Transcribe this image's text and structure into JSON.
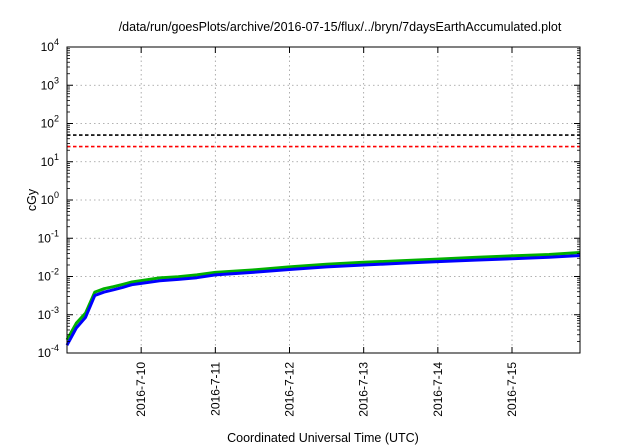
{
  "chart_data": {
    "type": "line",
    "title": "/data/run/goesPlots/archive/2016-07-15/flux/../bryn/7daysEarthAccumulated.plot",
    "xlabel": "Coordinated Universal Time (UTC)",
    "ylabel": "cGy",
    "yscale": "log",
    "ylim": [
      0.0001,
      10000
    ],
    "xlim": [
      "2016-07-09T00:00",
      "2016-07-15T22:00"
    ],
    "grid": true,
    "x_ticks": [
      {
        "date": "2016-07-10",
        "label": "2016-7-10"
      },
      {
        "date": "2016-07-11",
        "label": "2016-7-11"
      },
      {
        "date": "2016-07-12",
        "label": "2016-7-12"
      },
      {
        "date": "2016-07-13",
        "label": "2016-7-13"
      },
      {
        "date": "2016-07-14",
        "label": "2016-7-14"
      },
      {
        "date": "2016-07-15",
        "label": "2016-7-15"
      }
    ],
    "y_ticks": [
      {
        "value": 0.0001,
        "base": "10",
        "exp": "-4"
      },
      {
        "value": 0.001,
        "base": "10",
        "exp": "-3"
      },
      {
        "value": 0.01,
        "base": "10",
        "exp": "-2"
      },
      {
        "value": 0.1,
        "base": "10",
        "exp": "-1"
      },
      {
        "value": 1,
        "base": "10",
        "exp": "0"
      },
      {
        "value": 10,
        "base": "10",
        "exp": "1"
      },
      {
        "value": 100,
        "base": "10",
        "exp": "2"
      },
      {
        "value": 1000,
        "base": "10",
        "exp": "3"
      },
      {
        "value": 10000,
        "base": "10",
        "exp": "4"
      }
    ],
    "thresholds": [
      {
        "value": 50,
        "color": "#000000",
        "dash": "dashed"
      },
      {
        "value": 25,
        "color": "#ff0000",
        "dash": "dashed"
      }
    ],
    "series": [
      {
        "color": "#00b000",
        "x": [
          "2016-07-09T00:00",
          "2016-07-09T03:00",
          "2016-07-09T06:00",
          "2016-07-09T09:00",
          "2016-07-09T12:00",
          "2016-07-09T15:00",
          "2016-07-09T18:00",
          "2016-07-09T21:00",
          "2016-07-10T00:00",
          "2016-07-10T06:00",
          "2016-07-10T12:00",
          "2016-07-10T18:00",
          "2016-07-11T00:00",
          "2016-07-11T12:00",
          "2016-07-12T00:00",
          "2016-07-12T12:00",
          "2016-07-13T00:00",
          "2016-07-13T12:00",
          "2016-07-14T00:00",
          "2016-07-14T12:00",
          "2016-07-15T00:00",
          "2016-07-15T12:00",
          "2016-07-15T22:00"
        ],
        "y": [
          0.00022,
          0.0006,
          0.0011,
          0.0039,
          0.0048,
          0.0054,
          0.0062,
          0.0072,
          0.0078,
          0.0092,
          0.0099,
          0.011,
          0.0128,
          0.0148,
          0.0178,
          0.0208,
          0.0235,
          0.0258,
          0.0285,
          0.0315,
          0.0345,
          0.0375,
          0.0425
        ]
      },
      {
        "color": "#0000ff",
        "x": [
          "2016-07-09T00:00",
          "2016-07-09T03:00",
          "2016-07-09T06:00",
          "2016-07-09T09:00",
          "2016-07-09T12:00",
          "2016-07-09T15:00",
          "2016-07-09T18:00",
          "2016-07-09T21:00",
          "2016-07-10T00:00",
          "2016-07-10T06:00",
          "2016-07-10T12:00",
          "2016-07-10T18:00",
          "2016-07-11T00:00",
          "2016-07-11T12:00",
          "2016-07-12T00:00",
          "2016-07-12T12:00",
          "2016-07-13T00:00",
          "2016-07-13T12:00",
          "2016-07-14T00:00",
          "2016-07-14T12:00",
          "2016-07-15T00:00",
          "2016-07-15T12:00",
          "2016-07-15T22:00"
        ],
        "y": [
          0.00016,
          0.00045,
          0.00085,
          0.0032,
          0.0039,
          0.0045,
          0.0052,
          0.0061,
          0.0066,
          0.0077,
          0.0084,
          0.0093,
          0.011,
          0.0128,
          0.0152,
          0.0178,
          0.02,
          0.0222,
          0.0245,
          0.0268,
          0.0292,
          0.0318,
          0.0355
        ]
      }
    ]
  }
}
